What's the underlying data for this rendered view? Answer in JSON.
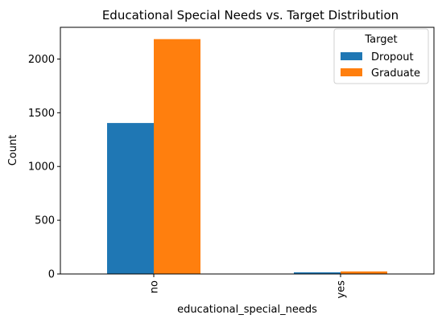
{
  "chart_data": {
    "type": "bar",
    "title": "Educational Special Needs vs. Target Distribution",
    "xlabel": "educational_special_needs",
    "ylabel": "Count",
    "categories": [
      "no",
      "yes"
    ],
    "series": [
      {
        "name": "Dropout",
        "values": [
          1405,
          16
        ],
        "color": "#1f77b4"
      },
      {
        "name": "Graduate",
        "values": [
          2185,
          24
        ],
        "color": "#ff7f0e"
      }
    ],
    "yticks": [
      0,
      500,
      1000,
      1500,
      2000
    ],
    "ylim": [
      0,
      2295
    ],
    "grid": false,
    "legend": {
      "title": "Target",
      "placement": "top-right"
    }
  }
}
